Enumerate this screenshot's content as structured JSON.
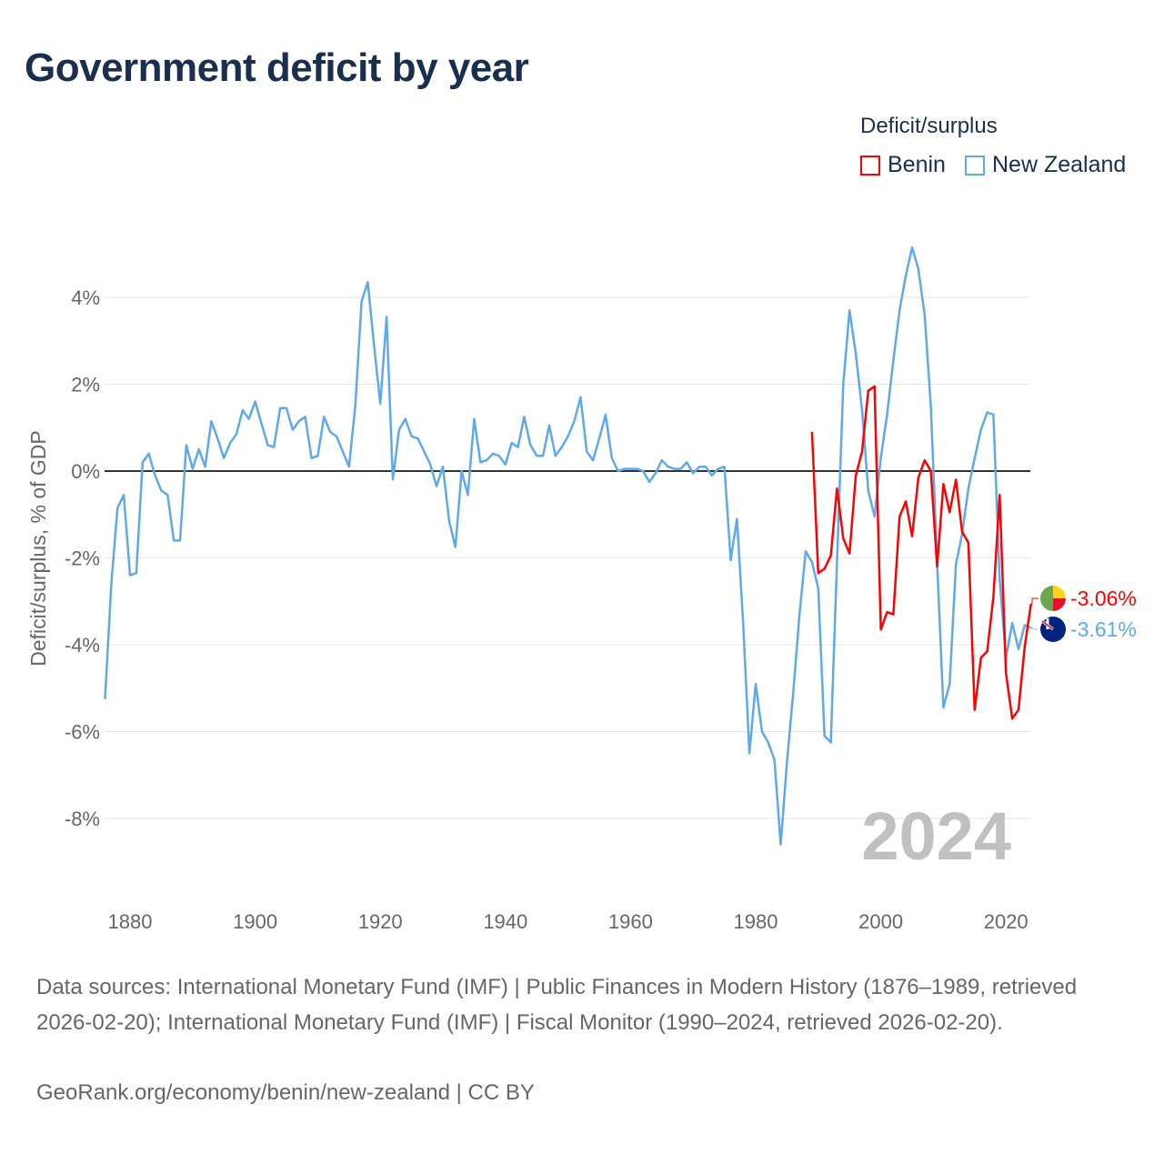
{
  "title": "Government deficit by year",
  "legend": {
    "title": "Deficit/surplus",
    "items": [
      {
        "name": "Benin",
        "color": "#ff0000"
      },
      {
        "name": "New Zealand",
        "color": "#5ea8ec"
      }
    ]
  },
  "footer": {
    "sources": "Data sources: International Monetary Fund (IMF) | Public Finances in Modern History (1876–1989, retrieved 2026-02-20); International Monetary Fund (IMF) | Fiscal Monitor (1990–2024, retrieved 2026-02-20).",
    "credit": "GeoRank.org/economy/benin/new-zealand | CC BY"
  },
  "chart_data": {
    "type": "line",
    "title": "Government deficit by year",
    "ylabel": "Deficit/surplus, % of GDP",
    "xlabel": "",
    "year_label": "2024",
    "xlim": [
      1876,
      2024
    ],
    "ylim": [
      -9.8,
      5.6
    ],
    "xticks": [
      1880,
      1900,
      1920,
      1940,
      1960,
      1980,
      2000,
      2020
    ],
    "yticks": [
      4,
      2,
      0,
      -2,
      -4,
      -6,
      -8
    ],
    "ytick_labels": [
      "4%",
      "2%",
      "0%",
      "-2%",
      "-4%",
      "-6%",
      "-8%"
    ],
    "grid": true,
    "series": [
      {
        "name": "Benin",
        "color": "#ff0000",
        "start": 1989,
        "end_label": "-3.06%",
        "values": [
          0.9,
          -2.35,
          -2.25,
          -1.95,
          -0.4,
          -1.55,
          -1.9,
          -0.1,
          0.45,
          1.85,
          1.95,
          -3.65,
          -3.25,
          -3.3,
          -1.05,
          -0.7,
          -1.5,
          -0.15,
          0.25,
          0.0,
          -2.2,
          -0.3,
          -0.95,
          -0.2,
          -1.4,
          -1.65,
          -5.5,
          -4.3,
          -4.15,
          -2.9,
          -0.55,
          -4.65,
          -5.7,
          -5.5,
          -4.05,
          -3.06
        ]
      },
      {
        "name": "New Zealand",
        "color": "#5ea8ec",
        "start": 1876,
        "end_label": "-3.61%",
        "values": [
          -5.25,
          -2.6,
          -0.85,
          -0.55,
          -2.4,
          -2.35,
          0.2,
          0.4,
          -0.1,
          -0.45,
          -0.55,
          -1.6,
          -1.6,
          0.6,
          0.05,
          0.5,
          0.1,
          1.15,
          0.75,
          0.3,
          0.65,
          0.85,
          1.4,
          1.2,
          1.6,
          1.1,
          0.6,
          0.55,
          1.45,
          1.45,
          0.95,
          1.15,
          1.25,
          0.3,
          0.35,
          1.25,
          0.9,
          0.8,
          0.45,
          0.1,
          1.5,
          3.9,
          4.35,
          2.9,
          1.55,
          3.55,
          -0.2,
          0.95,
          1.2,
          0.8,
          0.75,
          0.45,
          0.15,
          -0.35,
          0.1,
          -1.15,
          -1.75,
          0.0,
          -0.55,
          1.2,
          0.2,
          0.25,
          0.4,
          0.35,
          0.15,
          0.65,
          0.55,
          1.25,
          0.6,
          0.35,
          0.35,
          1.05,
          0.35,
          0.55,
          0.8,
          1.15,
          1.7,
          0.45,
          0.25,
          0.75,
          1.3,
          0.3,
          0.0,
          0.05,
          0.05,
          0.05,
          0.0,
          -0.25,
          -0.05,
          0.25,
          0.1,
          0.05,
          0.05,
          0.2,
          -0.05,
          0.1,
          0.1,
          -0.1,
          0.05,
          0.1,
          -2.05,
          -1.1,
          -3.5,
          -6.5,
          -4.9,
          -6.0,
          -6.25,
          -6.65,
          -8.6,
          -6.7,
          -5.1,
          -3.3,
          -1.85,
          -2.1,
          -2.7,
          -6.1,
          -6.25,
          -2.1,
          2.0,
          3.7,
          2.7,
          1.4,
          -0.45,
          -1.05,
          0.3,
          1.3,
          2.55,
          3.7,
          4.5,
          5.15,
          4.65,
          3.6,
          1.5,
          -2.1,
          -5.45,
          -4.9,
          -2.15,
          -1.45,
          -0.4,
          0.3,
          0.95,
          1.35,
          1.3,
          -2.5,
          -4.3,
          -3.5,
          -4.1,
          -3.55,
          -3.61
        ]
      }
    ]
  }
}
